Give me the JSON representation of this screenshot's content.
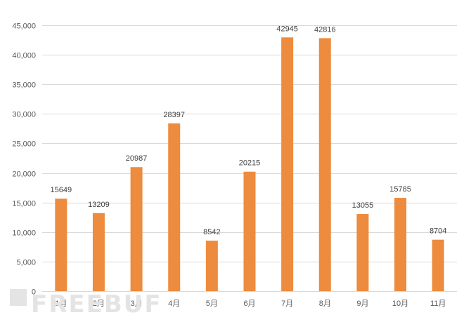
{
  "chart_data": {
    "type": "bar",
    "categories": [
      "1月",
      "2月",
      "3月",
      "4月",
      "5月",
      "6月",
      "7月",
      "8月",
      "9月",
      "10月",
      "11月"
    ],
    "values": [
      15649,
      13209,
      20987,
      28397,
      8542,
      20215,
      42945,
      42816,
      13055,
      15785,
      8704
    ],
    "data_labels": [
      "15649",
      "13209",
      "20987",
      "28397",
      "8542",
      "20215",
      "42945",
      "42816",
      "13055",
      "15785",
      "8704"
    ],
    "y_ticks": [
      0,
      5000,
      10000,
      15000,
      20000,
      25000,
      30000,
      35000,
      40000,
      45000
    ],
    "y_tick_labels": [
      "0",
      "5,000",
      "10,000",
      "15,000",
      "20,000",
      "25,000",
      "30,000",
      "35,000",
      "40,000",
      "45,000"
    ],
    "ylim": [
      0,
      45000
    ],
    "title": "",
    "xlabel": "",
    "ylabel": "",
    "grid": true,
    "legend": "none",
    "bar_color": "#ED8B3E"
  },
  "watermark": {
    "text": "FREEBUF"
  }
}
